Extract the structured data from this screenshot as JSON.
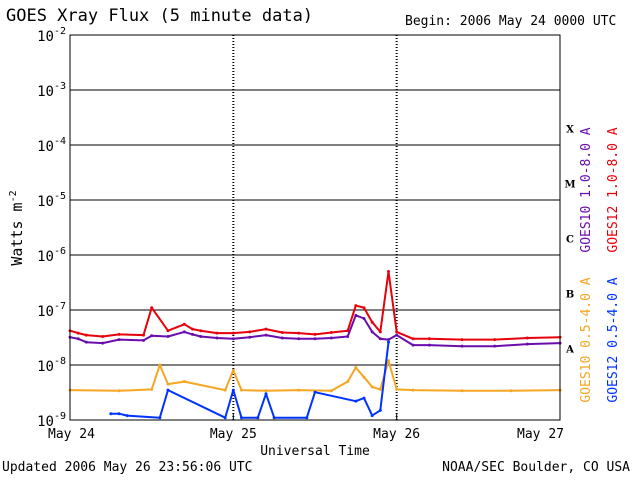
{
  "header": {
    "title": "GOES Xray Flux (5 minute data)",
    "begin": "Begin:  2006 May 24 0000 UTC"
  },
  "footer": {
    "updated": "Updated 2006 May 26 23:56:06 UTC",
    "credit": "NOAA/SEC Boulder, CO USA"
  },
  "colors": {
    "goes10_long": "#6a0dad",
    "goes12_long": "#e8000b",
    "goes10_short": "#f5a623",
    "goes12_short": "#0033ff"
  },
  "chart_data": {
    "type": "line",
    "title": "GOES Xray Flux (5 minute data)",
    "xlabel": "Universal Time",
    "ylabel": "Watts m",
    "ylabel_sup": "-2",
    "x_ticks": [
      "May 24",
      "May 25",
      "May 26",
      "May 27"
    ],
    "xlim": [
      "2006-05-24",
      "2006-05-27"
    ],
    "y_scale": "log",
    "ylim": [
      1e-09,
      0.01
    ],
    "y_ticks": [
      {
        "base": "10",
        "exp": "-9",
        "value": 1e-09
      },
      {
        "base": "10",
        "exp": "-8",
        "value": 1e-08
      },
      {
        "base": "10",
        "exp": "-7",
        "value": 1e-07
      },
      {
        "base": "10",
        "exp": "-6",
        "value": 1e-06
      },
      {
        "base": "10",
        "exp": "-5",
        "value": 1e-05
      },
      {
        "base": "10",
        "exp": "-4",
        "value": 0.0001
      },
      {
        "base": "10",
        "exp": "-3",
        "value": 0.001
      },
      {
        "base": "10",
        "exp": "-2",
        "value": 0.01
      }
    ],
    "flare_classes": [
      {
        "label": "A",
        "value": 2e-08
      },
      {
        "label": "B",
        "value": 2e-07
      },
      {
        "label": "C",
        "value": 2e-06
      },
      {
        "label": "M",
        "value": 2e-05
      },
      {
        "label": "X",
        "value": 0.0002
      }
    ],
    "grid": true,
    "legend": [
      {
        "text": "GOES10 1.0-8.0 A",
        "color": "#6a0dad"
      },
      {
        "text": "GOES12 1.0-8.0 A",
        "color": "#e8000b"
      },
      {
        "text": "GOES10 0.5-4.0 A",
        "color": "#f5a623"
      },
      {
        "text": "GOES12 0.5-4.0 A",
        "color": "#0033ff"
      }
    ],
    "series": [
      {
        "name": "GOES10 1.0-8.0 A",
        "color": "#6a0dad",
        "x": [
          0,
          0.05,
          0.1,
          0.2,
          0.3,
          0.45,
          0.5,
          0.6,
          0.7,
          0.75,
          0.8,
          0.9,
          1.0,
          1.1,
          1.2,
          1.3,
          1.4,
          1.5,
          1.6,
          1.7,
          1.75,
          1.8,
          1.85,
          1.9,
          1.95,
          2.0,
          2.1,
          2.2,
          2.4,
          2.6,
          2.8,
          3.0
        ],
        "values": [
          3.2e-08,
          3e-08,
          2.6e-08,
          2.5e-08,
          2.9e-08,
          2.8e-08,
          3.4e-08,
          3.3e-08,
          4e-08,
          3.6e-08,
          3.3e-08,
          3.1e-08,
          3e-08,
          3.2e-08,
          3.5e-08,
          3.1e-08,
          3e-08,
          3e-08,
          3.1e-08,
          3.3e-08,
          8e-08,
          7e-08,
          4e-08,
          3e-08,
          2.9e-08,
          3.5e-08,
          2.3e-08,
          2.3e-08,
          2.2e-08,
          2.2e-08,
          2.4e-08,
          2.5e-08
        ]
      },
      {
        "name": "GOES12 1.0-8.0 A",
        "color": "#e8000b",
        "x": [
          0,
          0.05,
          0.1,
          0.2,
          0.3,
          0.45,
          0.5,
          0.6,
          0.7,
          0.75,
          0.8,
          0.9,
          1.0,
          1.1,
          1.2,
          1.3,
          1.4,
          1.5,
          1.6,
          1.7,
          1.75,
          1.8,
          1.85,
          1.9,
          1.95,
          2.0,
          2.1,
          2.2,
          2.4,
          2.6,
          2.8,
          3.0
        ],
        "values": [
          4.2e-08,
          3.8e-08,
          3.5e-08,
          3.3e-08,
          3.6e-08,
          3.5e-08,
          1.1e-07,
          4.2e-08,
          5.5e-08,
          4.5e-08,
          4.2e-08,
          3.8e-08,
          3.8e-08,
          4e-08,
          4.5e-08,
          3.9e-08,
          3.8e-08,
          3.6e-08,
          3.9e-08,
          4.2e-08,
          1.2e-07,
          1.1e-07,
          6e-08,
          4e-08,
          5e-07,
          4e-08,
          3e-08,
          3e-08,
          2.9e-08,
          2.9e-08,
          3.1e-08,
          3.2e-08
        ]
      },
      {
        "name": "GOES10 0.5-4.0 A",
        "color": "#f5a623",
        "x": [
          0,
          0.3,
          0.5,
          0.55,
          0.6,
          0.7,
          0.95,
          1.0,
          1.05,
          1.2,
          1.4,
          1.6,
          1.7,
          1.75,
          1.8,
          1.85,
          1.9,
          1.95,
          2.0,
          2.1,
          2.4,
          2.7,
          3.0
        ],
        "values": [
          3.5e-09,
          3.4e-09,
          3.6e-09,
          1e-08,
          4.5e-09,
          5e-09,
          3.5e-09,
          8e-09,
          3.5e-09,
          3.4e-09,
          3.5e-09,
          3.4e-09,
          5e-09,
          9e-09,
          6e-09,
          4e-09,
          3.6e-09,
          1.2e-08,
          3.6e-09,
          3.5e-09,
          3.4e-09,
          3.4e-09,
          3.5e-09
        ]
      },
      {
        "name": "GOES12 0.5-4.0 A",
        "color": "#0033ff",
        "x": [
          0.25,
          0.3,
          0.35,
          0.55,
          0.6,
          0.95,
          1.0,
          1.05,
          1.15,
          1.2,
          1.25,
          1.45,
          1.5,
          1.75,
          1.8,
          1.85,
          1.9,
          1.95
        ],
        "values": [
          1.3e-09,
          1.3e-09,
          1.2e-09,
          1.1e-09,
          3.5e-09,
          1.1e-09,
          3.5e-09,
          1.1e-09,
          1.1e-09,
          3e-09,
          1.1e-09,
          1.1e-09,
          3.2e-09,
          2.2e-09,
          2.5e-09,
          1.2e-09,
          1.5e-09,
          2.6e-08
        ]
      }
    ]
  }
}
